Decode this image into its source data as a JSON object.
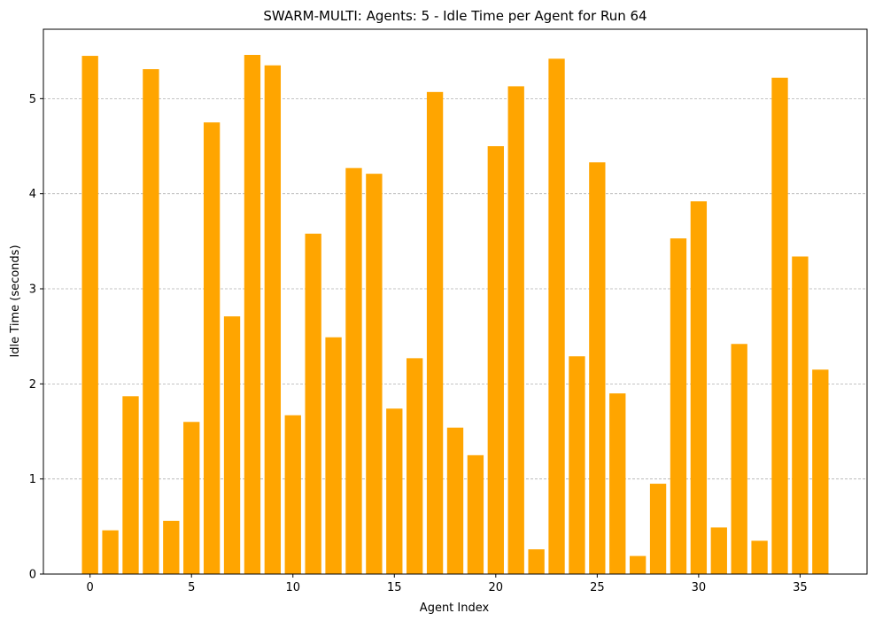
{
  "chart_data": {
    "type": "bar",
    "title": "SWARM-MULTI: Agents: 5 - Idle Time per Agent for Run 64",
    "xlabel": "Agent Index",
    "ylabel": "Idle Time (seconds)",
    "x": [
      0,
      1,
      2,
      3,
      4,
      5,
      6,
      7,
      8,
      9,
      10,
      11,
      12,
      13,
      14,
      15,
      16,
      17,
      18,
      19,
      20,
      21,
      22,
      23,
      24,
      25,
      26,
      27,
      28,
      29,
      30,
      31,
      32,
      33,
      34,
      35,
      36
    ],
    "values": [
      5.45,
      0.46,
      1.87,
      5.31,
      0.56,
      1.6,
      4.75,
      2.71,
      5.46,
      5.35,
      1.67,
      3.58,
      2.49,
      4.27,
      4.21,
      1.74,
      2.27,
      5.07,
      1.54,
      1.25,
      4.5,
      5.13,
      0.26,
      5.42,
      2.29,
      4.33,
      1.9,
      0.19,
      0.95,
      3.53,
      3.92,
      0.49,
      2.42,
      0.35,
      5.22,
      3.34,
      2.15
    ],
    "xlim": [
      -2.3,
      38.3
    ],
    "ylim": [
      0,
      5.73
    ],
    "xticks": [
      "0",
      "5",
      "10",
      "15",
      "20",
      "25",
      "30",
      "35"
    ],
    "yticks": [
      "0",
      "1",
      "2",
      "3",
      "4",
      "5"
    ],
    "grid": "y-dashed",
    "bar_color": "#FFA500"
  }
}
